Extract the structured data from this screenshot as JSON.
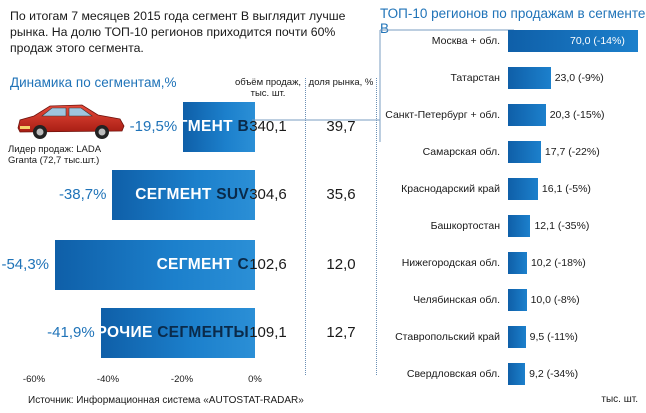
{
  "intro": "По итогам 7 месяцев 2015 года сегмент B выглядит лучше рынка. На долю ТОП-10 регионов приходится почти 60% продаж этого сегмента.",
  "left_title": "Динамика по сегментам,%",
  "columns": {
    "volume": "объём продаж, тыс. шт.",
    "share": "доля рынка, %"
  },
  "leader": "Лидер продаж: LADA Granta (72,7 тыс.шт.)",
  "source": "Источник: Информационная система «AUTOSTAT-RADAR»",
  "right_title": "ТОП-10 регионов по продажам в сегменте B",
  "right_units": "тыс. шт.",
  "colors": {
    "accent": "#1f73b8",
    "bar": "#1c80cc"
  },
  "chart_data": [
    {
      "type": "bar",
      "title": "Динамика по сегментам,%",
      "orientation": "horizontal",
      "xlim": [
        -60,
        0
      ],
      "x_ticks": [
        "-60%",
        "-40%",
        "-20%",
        "0%"
      ],
      "categories": [
        "СЕГМЕНТ B",
        "СЕГМЕНТ SUV",
        "СЕГМЕНТ C",
        "ПРОЧИЕ СЕГМЕНТЫ"
      ],
      "segments": [
        {
          "name_main": "СЕГМЕНТ ",
          "name_tail": "B",
          "change": -19.5,
          "change_label": "-19,5%",
          "volume": "340,1",
          "share": "39,7"
        },
        {
          "name_main": "СЕГМЕНТ ",
          "name_tail": "SUV",
          "change": -38.7,
          "change_label": "-38,7%",
          "volume": "304,6",
          "share": "35,6"
        },
        {
          "name_main": "СЕГМЕНТ ",
          "name_tail": "C",
          "change": -54.3,
          "change_label": "-54,3%",
          "volume": "102,6",
          "share": "12,0"
        },
        {
          "name_main": "ПРОЧИЕ ",
          "name_tail": "СЕГМЕНТЫ",
          "change": -41.9,
          "change_label": "-41,9%",
          "volume": "109,1",
          "share": "12,7"
        }
      ]
    },
    {
      "type": "bar",
      "title": "ТОП-10 регионов по продажам в сегменте B",
      "orientation": "horizontal",
      "unit": "тыс. шт.",
      "regions": [
        {
          "name": "Москва + обл.",
          "value": 70.0,
          "label": "70,0 (-14%)"
        },
        {
          "name": "Татарстан",
          "value": 23.0,
          "label": "23,0 (-9%)"
        },
        {
          "name": "Санкт-Петербург + обл.",
          "value": 20.3,
          "label": "20,3 (-15%)"
        },
        {
          "name": "Самарская обл.",
          "value": 17.7,
          "label": "17,7 (-22%)"
        },
        {
          "name": "Краснодарский край",
          "value": 16.1,
          "label": "16,1 (-5%)"
        },
        {
          "name": "Башкортостан",
          "value": 12.1,
          "label": "12,1 (-35%)"
        },
        {
          "name": "Нижегородская обл.",
          "value": 10.2,
          "label": "10,2 (-18%)"
        },
        {
          "name": "Челябинская обл.",
          "value": 10.0,
          "label": "10,0 (-8%)"
        },
        {
          "name": "Ставропольский край",
          "value": 9.5,
          "label": "9,5 (-11%)"
        },
        {
          "name": "Свердловская обл.",
          "value": 9.2,
          "label": "9,2 (-34%)"
        }
      ]
    }
  ]
}
